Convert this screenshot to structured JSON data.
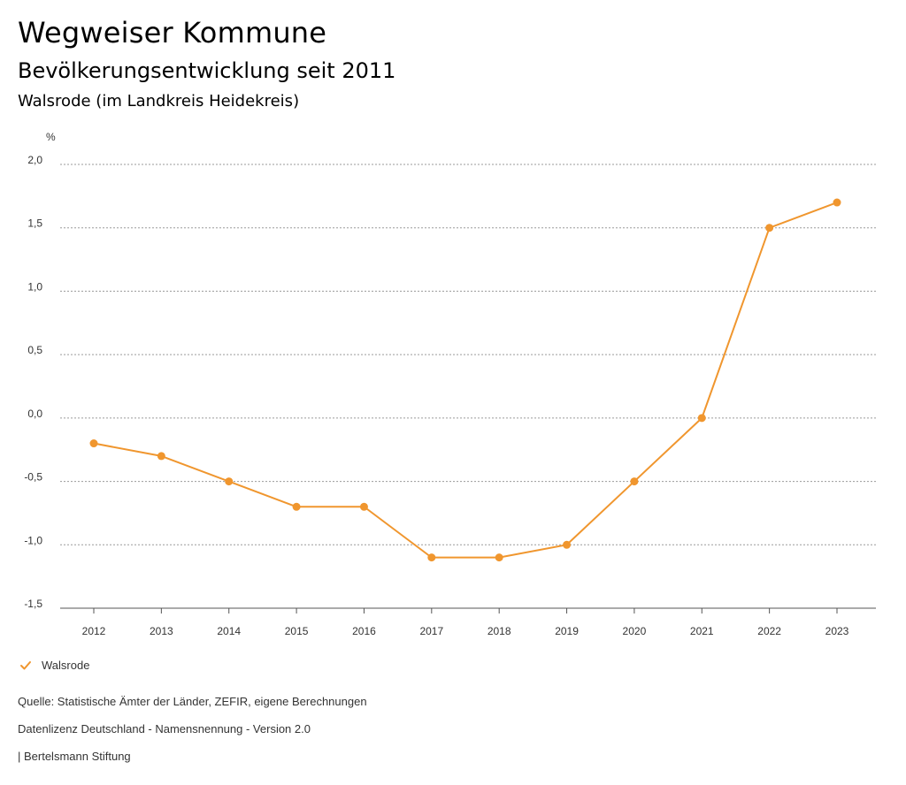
{
  "header": {
    "title": "Wegweiser Kommune",
    "subtitle": "Bevölkerungsentwicklung seit 2011",
    "region": "Walsrode (im Landkreis Heidekreis)"
  },
  "chart_data": {
    "type": "line",
    "ylabel": "%",
    "x": [
      "2012",
      "2013",
      "2014",
      "2015",
      "2016",
      "2017",
      "2018",
      "2019",
      "2020",
      "2021",
      "2022",
      "2023"
    ],
    "series": [
      {
        "name": "Walsrode",
        "color": "#f0962e",
        "values": [
          -0.2,
          -0.3,
          -0.5,
          -0.7,
          -0.7,
          -1.1,
          -1.1,
          -1.0,
          -0.5,
          0.0,
          1.5,
          1.7
        ]
      }
    ],
    "ylim": [
      -1.5,
      2.0
    ],
    "yticks": [
      2.0,
      1.5,
      1.0,
      0.5,
      0.0,
      -0.5,
      -1.0,
      -1.5
    ],
    "ytick_labels": [
      "2,0",
      "1,5",
      "1,0",
      "0,5",
      "0,0",
      "-0,5",
      "-1,0",
      "-1,5"
    ],
    "grid": true,
    "legend_position": "bottom-left"
  },
  "legend": {
    "label": "Walsrode"
  },
  "footer": {
    "source": "Quelle: Statistische Ämter der Länder, ZEFIR, eigene Berechnungen",
    "license": "Datenlizenz Deutschland - Namensnennung - Version 2.0",
    "publisher": "| Bertelsmann Stiftung"
  }
}
